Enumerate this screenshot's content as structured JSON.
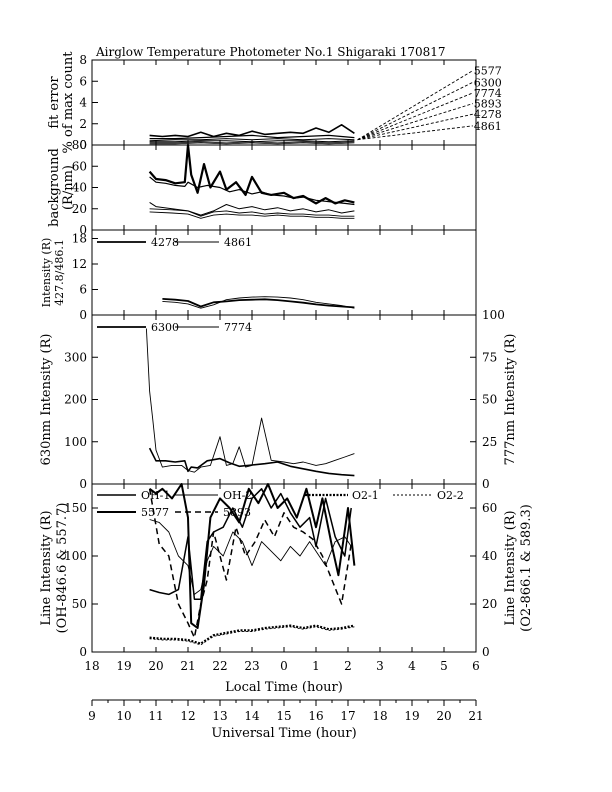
{
  "page_title": "Airglow Temperature Photometer No.1  Shigaraki  170817",
  "chart_data": [
    {
      "type": "line",
      "panel": "fit-error",
      "ylabel": [
        "fit error",
        "% of max count"
      ],
      "ylim": [
        0,
        8
      ],
      "yticks": [
        0,
        2,
        4,
        6,
        8
      ],
      "xlim": [
        18,
        30
      ],
      "grid": false,
      "labels": [
        "5577",
        "6300",
        "7774",
        "5893",
        "4278",
        "4861"
      ],
      "label_end_values": [
        7.0,
        5.9,
        4.9,
        3.9,
        2.9,
        1.8
      ],
      "series": [
        {
          "name": "5577",
          "x": [
            19.8,
            20.2,
            20.6,
            21.0,
            21.4,
            21.8,
            22.2,
            22.6,
            23.0,
            23.4,
            23.8,
            24.2,
            24.6,
            25.0,
            25.4,
            25.8,
            26.2
          ],
          "values": [
            0.9,
            0.8,
            0.9,
            0.8,
            1.2,
            0.8,
            1.1,
            0.9,
            1.3,
            1.0,
            1.1,
            1.2,
            1.1,
            1.6,
            1.2,
            1.9,
            1.1
          ]
        },
        {
          "name": "6300",
          "x": [
            19.8,
            20.6,
            21.4,
            22.2,
            23.0,
            23.8,
            24.6,
            25.4,
            26.2
          ],
          "values": [
            0.6,
            0.6,
            0.7,
            0.8,
            0.9,
            0.7,
            0.8,
            0.9,
            0.7
          ]
        },
        {
          "name": "7774",
          "x": [
            19.8,
            20.6,
            21.4,
            22.2,
            23.0,
            23.8,
            24.6,
            25.4,
            26.2
          ],
          "values": [
            0.4,
            0.5,
            0.5,
            0.6,
            0.5,
            0.6,
            0.5,
            0.6,
            0.5
          ]
        },
        {
          "name": "5893",
          "x": [
            19.8,
            20.6,
            21.4,
            22.2,
            23.0,
            23.8,
            24.6,
            25.4,
            26.2
          ],
          "values": [
            0.3,
            0.3,
            0.4,
            0.4,
            0.3,
            0.4,
            0.4,
            0.3,
            0.4
          ]
        },
        {
          "name": "4278",
          "x": [
            19.8,
            20.6,
            21.4,
            22.2,
            23.0,
            23.8,
            24.6,
            25.4,
            26.2
          ],
          "values": [
            0.2,
            0.2,
            0.3,
            0.2,
            0.3,
            0.2,
            0.3,
            0.2,
            0.3
          ]
        },
        {
          "name": "4861",
          "x": [
            19.8,
            20.6,
            21.4,
            22.2,
            23.0,
            23.8,
            24.6,
            25.4,
            26.2
          ],
          "values": [
            0.1,
            0.1,
            0.2,
            0.1,
            0.2,
            0.1,
            0.2,
            0.1,
            0.2
          ]
        }
      ]
    },
    {
      "type": "line",
      "panel": "background",
      "ylabel": [
        "background",
        "(R/nm)"
      ],
      "ylim": [
        0,
        80
      ],
      "yticks": [
        0,
        20,
        40,
        60,
        80
      ],
      "xlim": [
        18,
        30
      ],
      "grid": false,
      "series": [
        {
          "x": [
            19.8,
            20.0,
            20.3,
            20.6,
            20.9,
            21.0,
            21.1,
            21.3,
            21.5,
            21.7,
            22.0,
            22.2,
            22.5,
            22.8,
            23.0,
            23.3,
            23.6,
            24.0,
            24.3,
            24.6,
            25.0,
            25.3,
            25.6,
            25.9,
            26.2
          ],
          "values": [
            55,
            48,
            47,
            44,
            45,
            80,
            52,
            35,
            62,
            40,
            55,
            38,
            45,
            33,
            50,
            35,
            33,
            35,
            30,
            32,
            25,
            30,
            25,
            28,
            26
          ]
        },
        {
          "x": [
            19.8,
            20.0,
            20.3,
            20.6,
            20.9,
            21.0,
            21.3,
            21.6,
            22.0,
            22.3,
            22.6,
            23.0,
            23.3,
            23.6,
            24.0,
            24.3,
            24.6,
            25.0,
            25.3,
            25.6,
            25.9,
            26.2
          ],
          "values": [
            50,
            45,
            44,
            42,
            41,
            45,
            40,
            42,
            40,
            36,
            38,
            34,
            36,
            33,
            32,
            30,
            31,
            28,
            27,
            26,
            25,
            24
          ]
        },
        {
          "x": [
            19.8,
            20.0,
            20.5,
            21.0,
            21.4,
            21.8,
            22.2,
            22.6,
            23.0,
            23.4,
            23.8,
            24.2,
            24.6,
            25.0,
            25.4,
            25.8,
            26.2
          ],
          "values": [
            26,
            22,
            20,
            18,
            14,
            18,
            24,
            20,
            22,
            19,
            21,
            18,
            20,
            17,
            19,
            16,
            18
          ]
        },
        {
          "x": [
            19.8,
            20.5,
            21.0,
            21.4,
            21.8,
            22.2,
            22.6,
            23.0,
            23.4,
            23.8,
            24.2,
            24.6,
            25.0,
            25.4,
            25.8,
            26.2
          ],
          "values": [
            20,
            19,
            18,
            13,
            17,
            18,
            16,
            17,
            15,
            16,
            15,
            15,
            14,
            14,
            13,
            13
          ]
        },
        {
          "x": [
            19.8,
            20.5,
            21.0,
            21.4,
            21.8,
            22.2,
            22.6,
            23.0,
            23.4,
            23.8,
            24.2,
            24.6,
            25.0,
            25.4,
            25.8,
            26.2
          ],
          "values": [
            17,
            16,
            15,
            11,
            14,
            15,
            14,
            14,
            13,
            14,
            13,
            13,
            12,
            12,
            11,
            11
          ]
        }
      ]
    },
    {
      "type": "line",
      "panel": "blue-lines",
      "ylabel": [
        "Intensity (R)",
        "427.8/486.1"
      ],
      "ylim": [
        0,
        20
      ],
      "yticks": [
        0,
        6,
        12,
        18
      ],
      "xlim": [
        18,
        30
      ],
      "grid": false,
      "series": [
        {
          "name": "4278",
          "x": [
            20.2,
            20.6,
            21.0,
            21.4,
            21.8,
            22.2,
            22.6,
            23.0,
            23.4,
            23.8,
            24.2,
            24.6,
            25.0,
            25.4,
            25.8,
            26.2
          ],
          "values": [
            3.8,
            3.6,
            3.3,
            2.0,
            3.0,
            3.2,
            3.5,
            3.6,
            3.7,
            3.5,
            3.2,
            2.9,
            2.5,
            2.2,
            2.0,
            1.8
          ]
        },
        {
          "name": "4861",
          "x": [
            20.2,
            20.6,
            21.0,
            21.4,
            21.8,
            22.2,
            22.6,
            23.0,
            23.4,
            23.8,
            24.2,
            24.6,
            25.0,
            25.4,
            25.8,
            26.2
          ],
          "values": [
            3.2,
            3.0,
            2.6,
            1.6,
            2.4,
            3.6,
            4.0,
            4.2,
            4.3,
            4.2,
            4.0,
            3.6,
            3.0,
            2.6,
            2.2,
            1.6
          ]
        }
      ]
    },
    {
      "type": "line",
      "panel": "red-lines",
      "ylabel": "630nm Intensity (R)",
      "y2label": "777nm Intensity (R)",
      "ylim": [
        0,
        400
      ],
      "yticks": [
        0,
        100,
        200,
        300
      ],
      "y2lim": [
        0,
        100
      ],
      "y2ticks": [
        0,
        25,
        50,
        75,
        100
      ],
      "xlim": [
        18,
        30
      ],
      "grid": false,
      "series": [
        {
          "name": "6300",
          "x": [
            19.8,
            20.0,
            20.3,
            20.6,
            20.9,
            21.0,
            21.1,
            21.3,
            21.6,
            22.0,
            22.3,
            22.6,
            23.0,
            23.4,
            23.8,
            24.2,
            24.6,
            25.0,
            25.4,
            25.8,
            26.2
          ],
          "values": [
            85,
            55,
            55,
            52,
            55,
            30,
            40,
            38,
            55,
            60,
            50,
            42,
            45,
            48,
            52,
            42,
            36,
            30,
            25,
            22,
            20
          ]
        },
        {
          "name": "7774",
          "axis": "right",
          "x": [
            19.7,
            19.8,
            19.9,
            20.0,
            20.2,
            20.5,
            20.8,
            21.0,
            21.2,
            21.4,
            21.7,
            22.0,
            22.2,
            22.4,
            22.6,
            22.8,
            23.0,
            23.3,
            23.6,
            24.0,
            24.3,
            24.6,
            25.0,
            25.3,
            25.6,
            25.9,
            26.2
          ],
          "values": [
            92,
            55,
            38,
            20,
            10,
            11,
            11,
            8,
            7,
            10,
            11,
            28,
            11,
            12,
            22,
            10,
            11,
            39,
            14,
            13,
            12,
            13,
            11,
            12,
            14,
            16,
            18
          ]
        }
      ]
    },
    {
      "type": "line",
      "panel": "oh-green",
      "ylabel": [
        "Line Intensity (R)",
        "(OH-846.6 & 557.7)"
      ],
      "y2label": [
        "Line Intensity (R)",
        "(O2-866.1 & 589.3)"
      ],
      "ylim": [
        0,
        175
      ],
      "yticks": [
        0,
        50,
        100,
        150
      ],
      "y2lim": [
        0,
        70
      ],
      "y2ticks": [
        0,
        20,
        40,
        60
      ],
      "xlim": [
        18,
        30
      ],
      "x_tick_labels": [
        "18",
        "19",
        "20",
        "21",
        "22",
        "23",
        "0",
        "1",
        "2",
        "3",
        "4",
        "5",
        "6"
      ],
      "xlabel": "Local Time (hour)",
      "grid": false,
      "series": [
        {
          "name": "OH-1",
          "x": [
            19.8,
            20.1,
            20.4,
            20.7,
            21.0,
            21.2,
            21.4,
            21.6,
            21.8,
            22.1,
            22.4,
            22.7,
            23.0,
            23.3,
            23.6,
            23.9,
            24.2,
            24.5,
            24.8,
            25.0,
            25.3,
            25.6,
            25.9,
            26.1
          ],
          "values": [
            65,
            62,
            60,
            65,
            120,
            55,
            55,
            115,
            125,
            130,
            150,
            130,
            160,
            170,
            150,
            165,
            145,
            130,
            140,
            110,
            160,
            120,
            100,
            150
          ]
        },
        {
          "name": "OH-2",
          "x": [
            19.8,
            20.1,
            20.4,
            20.7,
            21.0,
            21.2,
            21.4,
            21.6,
            21.8,
            22.1,
            22.4,
            22.7,
            23.0,
            23.3,
            23.6,
            23.9,
            24.2,
            24.5,
            24.8,
            25.0,
            25.3,
            25.6,
            25.9,
            26.1
          ],
          "values": [
            138,
            135,
            125,
            100,
            90,
            60,
            65,
            95,
            110,
            100,
            125,
            115,
            90,
            115,
            105,
            95,
            110,
            100,
            115,
            105,
            90,
            115,
            120,
            110
          ]
        },
        {
          "name": "5577",
          "x": [
            19.8,
            20.0,
            20.2,
            20.5,
            20.8,
            21.0,
            21.1,
            21.3,
            21.5,
            21.7,
            22.0,
            22.3,
            22.6,
            22.9,
            23.2,
            23.5,
            23.8,
            24.1,
            24.4,
            24.7,
            25.0,
            25.2,
            25.5,
            25.7,
            26.0,
            26.2
          ],
          "values": [
            170,
            165,
            170,
            160,
            175,
            140,
            30,
            25,
            70,
            140,
            160,
            150,
            135,
            170,
            155,
            175,
            150,
            160,
            140,
            170,
            130,
            160,
            110,
            80,
            150,
            90
          ]
        },
        {
          "name": "O2-1",
          "axis": "right",
          "x": [
            19.8,
            20.2,
            20.6,
            21.0,
            21.4,
            21.8,
            22.2,
            22.6,
            23.0,
            23.4,
            23.8,
            24.2,
            24.6,
            25.0,
            25.4,
            25.8,
            26.2
          ],
          "values": [
            6,
            5.5,
            5.5,
            5,
            3.5,
            7,
            8,
            9,
            9,
            10,
            10.5,
            11,
            10,
            11,
            9.5,
            10,
            11
          ]
        },
        {
          "name": "O2-2",
          "axis": "right",
          "x": [
            19.8,
            20.2,
            20.6,
            21.0,
            21.4,
            21.8,
            22.2,
            22.6,
            23.0,
            23.4,
            23.8,
            24.2,
            24.6,
            25.0,
            25.4,
            25.8,
            26.2
          ],
          "values": [
            5.5,
            5.0,
            5.0,
            4.5,
            3.0,
            6.5,
            7.5,
            8.5,
            8.5,
            9.5,
            10,
            10.5,
            9.5,
            10.5,
            9,
            9.5,
            10.5
          ]
        },
        {
          "name": "5893",
          "axis": "right",
          "x": [
            19.8,
            20.1,
            20.4,
            20.7,
            21.0,
            21.2,
            21.4,
            21.6,
            21.8,
            22.0,
            22.2,
            22.5,
            22.8,
            23.1,
            23.4,
            23.7,
            24.0,
            24.3,
            24.6,
            24.9,
            25.2,
            25.5,
            25.8,
            26.1
          ],
          "values": [
            68,
            45,
            40,
            20,
            12,
            6,
            20,
            30,
            50,
            40,
            30,
            52,
            40,
            46,
            55,
            48,
            58,
            52,
            50,
            47,
            40,
            30,
            20,
            45
          ]
        }
      ]
    }
  ],
  "x2_axis": {
    "label": "Universal Time (hour)",
    "tick_labels": [
      "9",
      "10",
      "11",
      "12",
      "13",
      "14",
      "15",
      "16",
      "17",
      "18",
      "19",
      "20",
      "21"
    ]
  }
}
